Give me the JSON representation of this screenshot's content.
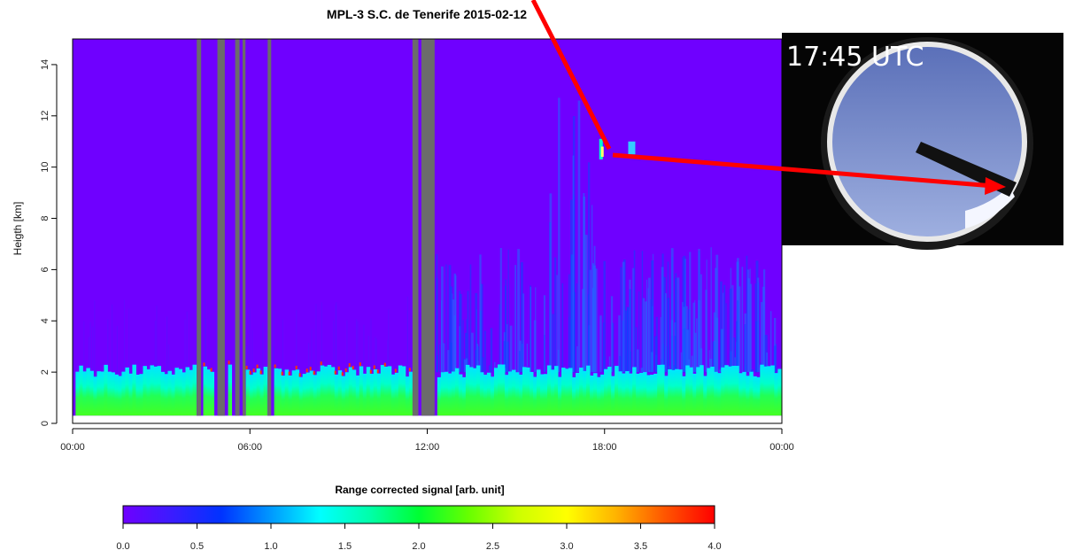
{
  "chart_data": {
    "type": "heatmap",
    "title": "MPL-3 S.C. de Tenerife 2015-02-12",
    "ylabel": "Heigth [km]",
    "xlabel": "",
    "x_tick_labels": [
      "00:00",
      "06:00",
      "12:00",
      "18:00",
      "00:00"
    ],
    "x_ticks_hours": [
      0,
      6,
      12,
      18,
      24
    ],
    "xlim_hours": [
      0,
      24
    ],
    "y_ticks": [
      0,
      2,
      4,
      6,
      8,
      10,
      12,
      14
    ],
    "ylim": [
      0,
      15
    ],
    "colorbar": {
      "label": "Range corrected signal [arb. unit]",
      "range": [
        0,
        4
      ],
      "ticks": [
        "0.0",
        "0.5",
        "1.0",
        "1.5",
        "2.0",
        "2.5",
        "3.0",
        "3.5",
        "4.0"
      ],
      "colors": [
        "#6f00ff",
        "#3a1cff",
        "#0033ff",
        "#0099ff",
        "#00ffff",
        "#00ffaa",
        "#00ff33",
        "#66ff00",
        "#ccff00",
        "#ffff00",
        "#ffb300",
        "#ff5500",
        "#ff0000"
      ]
    },
    "no_data_gaps_hours": [
      [
        4.2,
        4.35
      ],
      [
        4.9,
        5.15
      ],
      [
        5.5,
        5.65
      ],
      [
        5.75,
        5.85
      ],
      [
        6.6,
        6.72
      ],
      [
        11.5,
        11.7
      ],
      [
        11.8,
        12.25
      ]
    ],
    "boundary_layer_top_km": 2.0,
    "cloud_event": {
      "time_hours": 18.0,
      "height_km": 10.5
    },
    "inset": {
      "time_label": "17:45 UTC"
    }
  }
}
